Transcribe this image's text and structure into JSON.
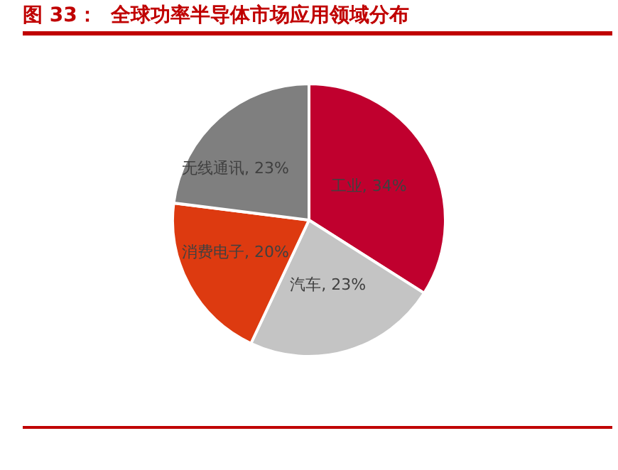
{
  "chart_data": {
    "type": "pie",
    "title": "图 33：  全球功率半导体市场应用领域分布",
    "categories": [
      "工业",
      "汽车",
      "消费电子",
      "无线通讯"
    ],
    "values": [
      34,
      23,
      20,
      23
    ],
    "value_labels": [
      "34%",
      "23%",
      "20%",
      "23%"
    ],
    "colors": [
      "#c0002e",
      "#c4c4c4",
      "#dd3a10",
      "#7f7f7f"
    ],
    "legend": false
  }
}
